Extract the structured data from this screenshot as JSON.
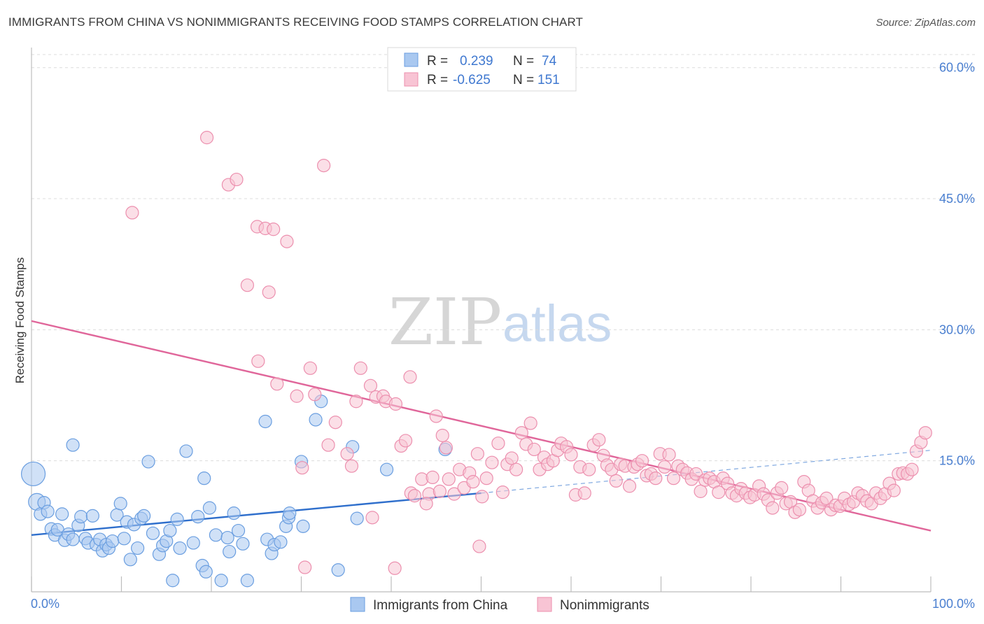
{
  "title": "IMMIGRANTS FROM CHINA VS NONIMMIGRANTS RECEIVING FOOD STAMPS CORRELATION CHART",
  "source": "Source: ZipAtlas.com",
  "watermark": {
    "zip": "ZIP",
    "atlas": "atlas"
  },
  "legend": {
    "r_label": "R =",
    "n_label": "N =",
    "rows": [
      {
        "r": "0.239",
        "n": "74",
        "color": "#a9c8f0",
        "stroke": "#6a9ee0"
      },
      {
        "r": "-0.625",
        "n": "151",
        "color": "#f8c4d4",
        "stroke": "#ec8fae"
      }
    ]
  },
  "chart_data": {
    "type": "scatter",
    "xlabel": "",
    "ylabel": "Receiving Food Stamps",
    "xlim": [
      0,
      100
    ],
    "ylim": [
      0,
      60
    ],
    "x_tick_labels": [
      "0.0%",
      "100.0%"
    ],
    "y_ticks": [
      15,
      30,
      45,
      60
    ],
    "y_tick_labels": [
      "15.0%",
      "30.0%",
      "45.0%",
      "60.0%"
    ],
    "grid": true,
    "legend_position": "bottom",
    "series": [
      {
        "name": "Immigrants from China",
        "color": "#a9c8f0",
        "stroke": "#6a9ee0",
        "line_color": "#2f6fcc",
        "trend": {
          "x0": 0,
          "y0": 6.5,
          "x1": 50,
          "y1": 11.3,
          "dash_x1": 100,
          "dash_y1": 16.2
        },
        "points": [
          [
            0.2,
            13.5
          ],
          [
            0.6,
            10.3
          ],
          [
            1.0,
            8.9
          ],
          [
            1.4,
            10.2
          ],
          [
            1.8,
            9.2
          ],
          [
            2.2,
            7.2
          ],
          [
            2.6,
            6.5
          ],
          [
            2.9,
            7.1
          ],
          [
            3.4,
            8.9
          ],
          [
            3.7,
            5.9
          ],
          [
            4.1,
            6.6
          ],
          [
            4.6,
            6.0
          ],
          [
            5.2,
            7.6
          ],
          [
            5.5,
            8.6
          ],
          [
            6.0,
            6.1
          ],
          [
            6.3,
            5.6
          ],
          [
            6.8,
            8.7
          ],
          [
            7.2,
            5.4
          ],
          [
            7.6,
            6.0
          ],
          [
            7.9,
            4.7
          ],
          [
            8.3,
            5.4
          ],
          [
            8.6,
            5.0
          ],
          [
            9.0,
            5.8
          ],
          [
            9.5,
            8.8
          ],
          [
            9.9,
            10.1
          ],
          [
            10.3,
            6.1
          ],
          [
            10.6,
            8.0
          ],
          [
            11.0,
            3.7
          ],
          [
            11.4,
            7.7
          ],
          [
            11.8,
            5.0
          ],
          [
            12.2,
            8.4
          ],
          [
            12.5,
            8.7
          ],
          [
            13.0,
            14.9
          ],
          [
            13.5,
            6.7
          ],
          [
            14.2,
            4.3
          ],
          [
            14.6,
            5.3
          ],
          [
            15.0,
            5.8
          ],
          [
            15.4,
            7.0
          ],
          [
            15.7,
            1.3
          ],
          [
            16.2,
            8.3
          ],
          [
            16.5,
            5.0
          ],
          [
            17.2,
            16.1
          ],
          [
            18.0,
            5.6
          ],
          [
            18.5,
            8.6
          ],
          [
            19.2,
            13.0
          ],
          [
            19.0,
            3.0
          ],
          [
            19.4,
            2.3
          ],
          [
            19.8,
            9.6
          ],
          [
            20.5,
            6.5
          ],
          [
            21.1,
            1.3
          ],
          [
            21.8,
            6.2
          ],
          [
            22.0,
            4.6
          ],
          [
            22.5,
            9.0
          ],
          [
            23.0,
            7.0
          ],
          [
            23.5,
            5.5
          ],
          [
            24.0,
            1.3
          ],
          [
            26.0,
            19.5
          ],
          [
            26.2,
            6.0
          ],
          [
            26.7,
            4.4
          ],
          [
            27.0,
            5.4
          ],
          [
            27.7,
            5.7
          ],
          [
            28.3,
            7.5
          ],
          [
            28.6,
            8.5
          ],
          [
            28.7,
            9.0
          ],
          [
            30.0,
            14.9
          ],
          [
            30.2,
            7.5
          ],
          [
            31.6,
            19.7
          ],
          [
            32.2,
            21.8
          ],
          [
            34.1,
            2.5
          ],
          [
            35.7,
            16.6
          ],
          [
            36.2,
            8.4
          ],
          [
            39.5,
            14.0
          ],
          [
            46.0,
            16.3
          ],
          [
            4.6,
            16.8
          ]
        ]
      },
      {
        "name": "Nonimmigrants",
        "color": "#f8c4d4",
        "stroke": "#ec8fae",
        "line_color": "#e0669a",
        "trend": {
          "x0": 0,
          "y0": 31.0,
          "x1": 100,
          "y1": 7.0
        },
        "points": [
          [
            19.5,
            52.0
          ],
          [
            32.5,
            48.8
          ],
          [
            21.9,
            46.6
          ],
          [
            22.8,
            47.2
          ],
          [
            11.2,
            43.4
          ],
          [
            25.1,
            41.8
          ],
          [
            26.0,
            41.6
          ],
          [
            26.9,
            41.5
          ],
          [
            28.4,
            40.1
          ],
          [
            24.0,
            35.1
          ],
          [
            26.4,
            34.3
          ],
          [
            25.2,
            26.4
          ],
          [
            30.1,
            14.2
          ],
          [
            27.3,
            23.8
          ],
          [
            29.5,
            22.4
          ],
          [
            31.0,
            25.6
          ],
          [
            31.5,
            22.6
          ],
          [
            33.0,
            16.8
          ],
          [
            33.8,
            19.4
          ],
          [
            35.1,
            15.8
          ],
          [
            35.6,
            14.4
          ],
          [
            36.1,
            21.8
          ],
          [
            36.6,
            25.6
          ],
          [
            37.7,
            23.6
          ],
          [
            38.3,
            22.3
          ],
          [
            39.1,
            22.4
          ],
          [
            39.4,
            21.8
          ],
          [
            40.5,
            21.5
          ],
          [
            41.1,
            16.7
          ],
          [
            41.6,
            17.3
          ],
          [
            42.1,
            24.6
          ],
          [
            42.2,
            11.3
          ],
          [
            42.6,
            11.0
          ],
          [
            43.4,
            12.9
          ],
          [
            44.2,
            11.2
          ],
          [
            44.6,
            13.1
          ],
          [
            45.0,
            20.1
          ],
          [
            45.4,
            11.5
          ],
          [
            45.7,
            17.9
          ],
          [
            46.1,
            16.5
          ],
          [
            46.4,
            12.9
          ],
          [
            47.0,
            11.2
          ],
          [
            47.6,
            14.0
          ],
          [
            48.1,
            11.9
          ],
          [
            48.7,
            13.6
          ],
          [
            49.1,
            12.6
          ],
          [
            49.6,
            15.8
          ],
          [
            50.1,
            10.9
          ],
          [
            50.6,
            13.0
          ],
          [
            51.2,
            14.8
          ],
          [
            51.9,
            17.0
          ],
          [
            52.4,
            11.4
          ],
          [
            52.9,
            14.6
          ],
          [
            53.4,
            15.3
          ],
          [
            53.9,
            14.0
          ],
          [
            54.5,
            18.2
          ],
          [
            55.0,
            16.9
          ],
          [
            55.5,
            19.3
          ],
          [
            55.9,
            16.3
          ],
          [
            56.5,
            14.0
          ],
          [
            57.0,
            15.4
          ],
          [
            57.4,
            14.6
          ],
          [
            58.0,
            15.0
          ],
          [
            58.5,
            16.2
          ],
          [
            58.9,
            17.0
          ],
          [
            59.5,
            16.6
          ],
          [
            60.0,
            15.7
          ],
          [
            60.5,
            11.1
          ],
          [
            61.0,
            14.3
          ],
          [
            61.5,
            11.3
          ],
          [
            62.0,
            14.0
          ],
          [
            62.5,
            16.8
          ],
          [
            63.1,
            17.4
          ],
          [
            63.6,
            15.6
          ],
          [
            64.0,
            14.5
          ],
          [
            64.5,
            14.0
          ],
          [
            65.0,
            12.7
          ],
          [
            65.5,
            14.6
          ],
          [
            66.0,
            14.4
          ],
          [
            66.5,
            12.1
          ],
          [
            67.0,
            14.3
          ],
          [
            67.4,
            14.6
          ],
          [
            67.9,
            15.0
          ],
          [
            68.4,
            13.3
          ],
          [
            68.9,
            13.5
          ],
          [
            69.4,
            13.0
          ],
          [
            69.9,
            15.8
          ],
          [
            70.4,
            14.3
          ],
          [
            70.9,
            15.7
          ],
          [
            71.4,
            13.0
          ],
          [
            71.9,
            14.4
          ],
          [
            72.4,
            14.0
          ],
          [
            72.9,
            13.6
          ],
          [
            73.4,
            12.9
          ],
          [
            73.9,
            13.5
          ],
          [
            74.4,
            11.5
          ],
          [
            74.9,
            12.8
          ],
          [
            75.4,
            13.0
          ],
          [
            75.9,
            12.6
          ],
          [
            76.4,
            11.4
          ],
          [
            76.9,
            13.0
          ],
          [
            77.4,
            12.4
          ],
          [
            77.9,
            11.3
          ],
          [
            78.4,
            11.0
          ],
          [
            78.9,
            11.8
          ],
          [
            79.4,
            11.3
          ],
          [
            79.9,
            10.8
          ],
          [
            80.4,
            11.1
          ],
          [
            80.9,
            12.1
          ],
          [
            81.4,
            11.2
          ],
          [
            81.9,
            10.5
          ],
          [
            82.4,
            9.6
          ],
          [
            82.9,
            11.3
          ],
          [
            83.4,
            11.9
          ],
          [
            83.9,
            10.1
          ],
          [
            84.4,
            10.3
          ],
          [
            84.9,
            9.1
          ],
          [
            85.4,
            9.4
          ],
          [
            85.9,
            12.6
          ],
          [
            86.4,
            11.6
          ],
          [
            86.9,
            10.4
          ],
          [
            87.4,
            9.6
          ],
          [
            87.9,
            10.2
          ],
          [
            88.4,
            10.7
          ],
          [
            88.9,
            9.4
          ],
          [
            89.4,
            9.9
          ],
          [
            89.9,
            9.8
          ],
          [
            90.4,
            10.7
          ],
          [
            90.9,
            10.0
          ],
          [
            91.4,
            10.3
          ],
          [
            91.9,
            11.3
          ],
          [
            92.4,
            11.0
          ],
          [
            92.9,
            10.4
          ],
          [
            93.4,
            10.1
          ],
          [
            93.9,
            11.3
          ],
          [
            94.4,
            10.7
          ],
          [
            94.9,
            11.2
          ],
          [
            95.4,
            12.4
          ],
          [
            95.9,
            11.6
          ],
          [
            96.4,
            13.5
          ],
          [
            96.9,
            13.6
          ],
          [
            97.4,
            13.5
          ],
          [
            97.9,
            14.0
          ],
          [
            98.4,
            16.1
          ],
          [
            98.9,
            17.1
          ],
          [
            99.4,
            18.2
          ],
          [
            49.8,
            5.2
          ],
          [
            40.4,
            2.7
          ],
          [
            30.4,
            2.8
          ],
          [
            37.9,
            8.5
          ],
          [
            43.9,
            10.1
          ]
        ]
      }
    ]
  }
}
